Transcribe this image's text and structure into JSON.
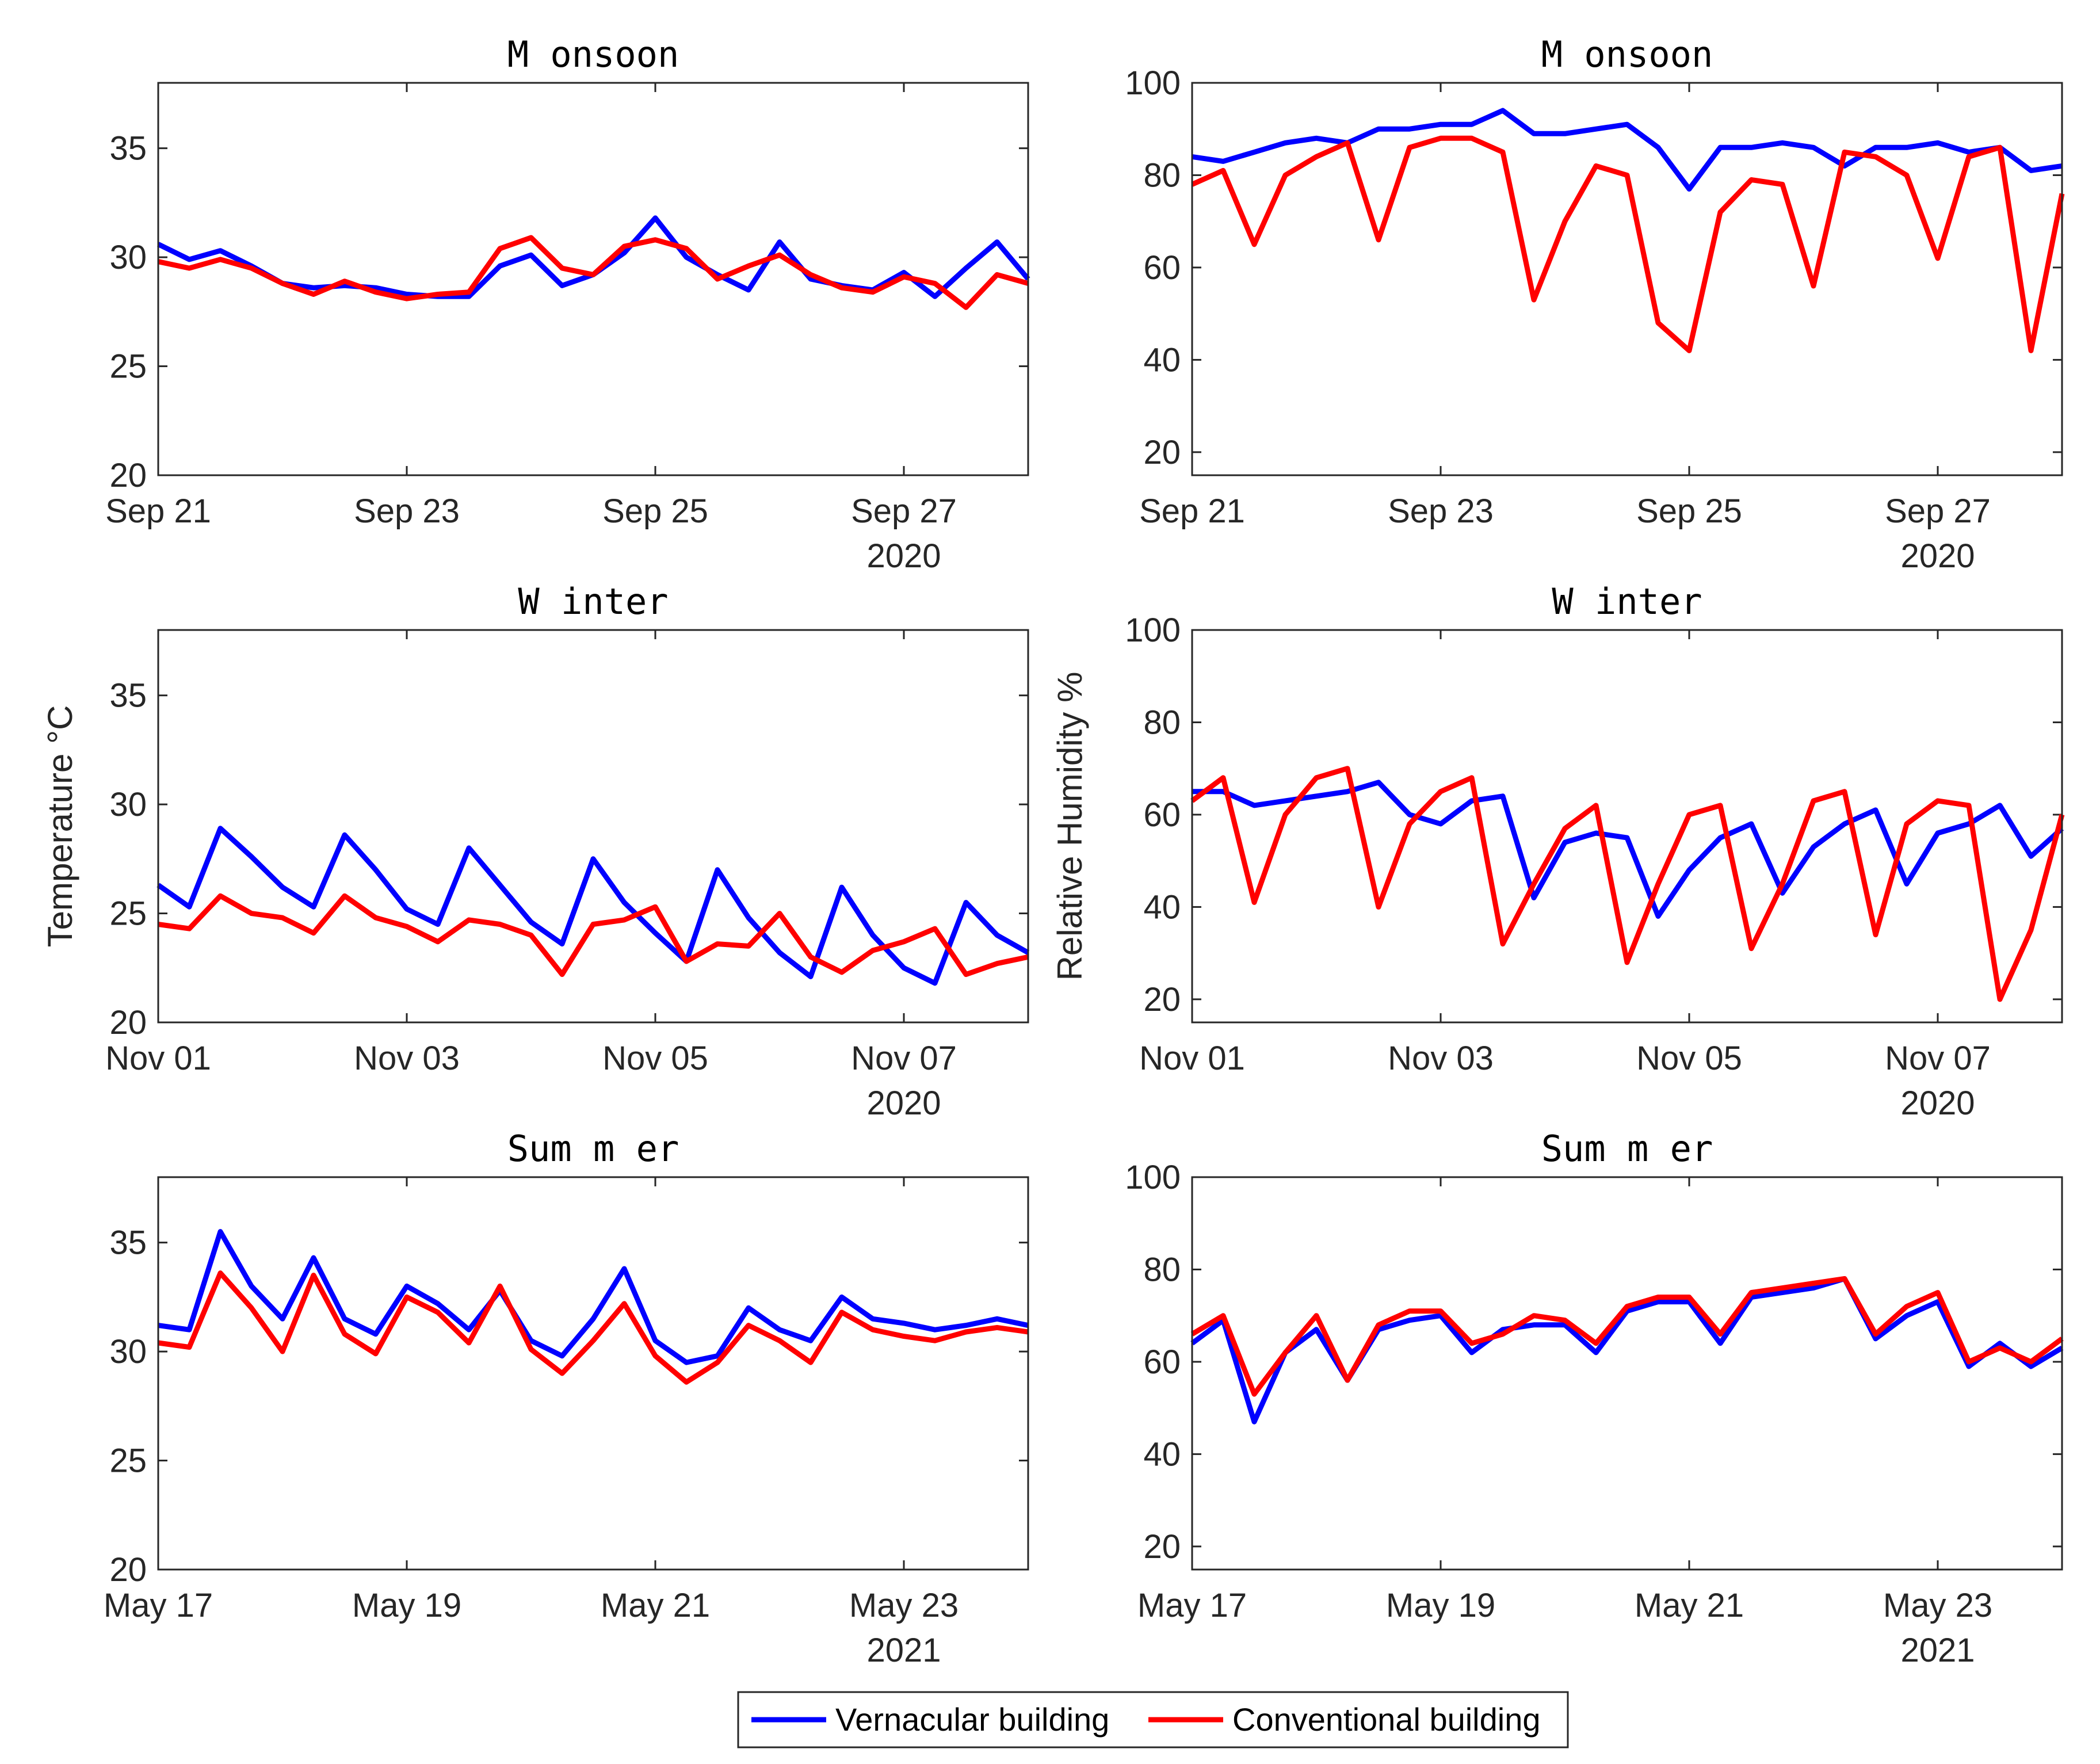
{
  "colors": {
    "vernacular": "#0000ff",
    "conventional": "#ff0000",
    "axis": "#262626"
  },
  "legend": {
    "items": [
      "Vernacular building",
      "Conventional building"
    ]
  },
  "chart_data": [
    {
      "type": "line",
      "title": "M onsoon",
      "ylabel": "",
      "ylim": [
        20,
        38
      ],
      "yticks": [
        20,
        25,
        30,
        35
      ],
      "xlim": [
        0,
        7
      ],
      "xtick_labels": [
        "Sep 21",
        "Sep 23",
        "Sep 25",
        "Sep 27"
      ],
      "year_label": "2020",
      "x": [
        0,
        0.25,
        0.5,
        0.75,
        1,
        1.25,
        1.5,
        1.75,
        2,
        2.25,
        2.5,
        2.75,
        3,
        3.25,
        3.5,
        3.75,
        4,
        4.25,
        4.5,
        4.75,
        5,
        5.25,
        5.5,
        5.75,
        6,
        6.25,
        6.5,
        6.75,
        7
      ],
      "series": [
        {
          "name": "Vernacular building",
          "values": [
            30.6,
            29.9,
            30.3,
            29.6,
            28.8,
            28.6,
            28.7,
            28.6,
            28.3,
            28.2,
            28.2,
            29.6,
            30.1,
            28.7,
            29.2,
            30.2,
            31.8,
            30.0,
            29.2,
            28.5,
            30.7,
            29.0,
            28.7,
            28.5,
            29.3,
            28.2,
            29.5,
            30.7,
            29.0
          ]
        },
        {
          "name": "Conventional building",
          "values": [
            29.8,
            29.5,
            29.9,
            29.5,
            28.8,
            28.3,
            28.9,
            28.4,
            28.1,
            28.3,
            28.4,
            30.4,
            30.9,
            29.5,
            29.2,
            30.5,
            30.8,
            30.4,
            29.0,
            29.6,
            30.1,
            29.2,
            28.6,
            28.4,
            29.1,
            28.8,
            27.7,
            29.2,
            28.8
          ]
        }
      ]
    },
    {
      "type": "line",
      "title": "M onsoon",
      "ylabel": "",
      "ylim": [
        15,
        100
      ],
      "yticks": [
        20,
        40,
        60,
        80,
        100
      ],
      "xlim": [
        0,
        7
      ],
      "xtick_labels": [
        "Sep 21",
        "Sep 23",
        "Sep 25",
        "Sep 27"
      ],
      "year_label": "2020",
      "x": [
        0,
        0.25,
        0.5,
        0.75,
        1,
        1.25,
        1.5,
        1.75,
        2,
        2.25,
        2.5,
        2.75,
        3,
        3.25,
        3.5,
        3.75,
        4,
        4.25,
        4.5,
        4.75,
        5,
        5.25,
        5.5,
        5.75,
        6,
        6.25,
        6.5,
        6.75,
        7
      ],
      "series": [
        {
          "name": "Vernacular building",
          "values": [
            84,
            83,
            85,
            87,
            88,
            87,
            90,
            90,
            91,
            91,
            94,
            89,
            89,
            90,
            91,
            86,
            77,
            86,
            86,
            87,
            86,
            82,
            86,
            86,
            87,
            85,
            86,
            81,
            82
          ]
        },
        {
          "name": "Conventional building",
          "values": [
            78,
            81,
            65,
            80,
            84,
            87,
            66,
            86,
            88,
            88,
            85,
            53,
            70,
            82,
            80,
            48,
            42,
            72,
            79,
            78,
            56,
            85,
            84,
            80,
            62,
            84,
            86,
            42,
            76
          ]
        }
      ]
    },
    {
      "type": "line",
      "title": "W inter",
      "ylabel": "Temperature °C",
      "ylim": [
        20,
        38
      ],
      "yticks": [
        20,
        25,
        30,
        35
      ],
      "xlim": [
        0,
        7
      ],
      "xtick_labels": [
        "Nov 01",
        "Nov 03",
        "Nov 05",
        "Nov 07"
      ],
      "year_label": "2020",
      "x": [
        0,
        0.25,
        0.5,
        0.75,
        1,
        1.25,
        1.5,
        1.75,
        2,
        2.25,
        2.5,
        2.75,
        3,
        3.25,
        3.5,
        3.75,
        4,
        4.25,
        4.5,
        4.75,
        5,
        5.25,
        5.5,
        5.75,
        6,
        6.25,
        6.5,
        6.75,
        7
      ],
      "series": [
        {
          "name": "Vernacular building",
          "values": [
            26.3,
            25.3,
            28.9,
            27.6,
            26.2,
            25.3,
            28.6,
            27.0,
            25.2,
            24.5,
            28.0,
            26.3,
            24.6,
            23.6,
            27.5,
            25.5,
            24.1,
            22.8,
            27.0,
            24.8,
            23.2,
            22.1,
            26.2,
            24.0,
            22.5,
            21.8,
            25.5,
            24.0,
            23.2
          ]
        },
        {
          "name": "Conventional building",
          "values": [
            24.5,
            24.3,
            25.8,
            25.0,
            24.8,
            24.1,
            25.8,
            24.8,
            24.4,
            23.7,
            24.7,
            24.5,
            24.0,
            22.2,
            24.5,
            24.7,
            25.3,
            22.8,
            23.6,
            23.5,
            25.0,
            23.0,
            22.3,
            23.3,
            23.7,
            24.3,
            22.2,
            22.7,
            23.0
          ]
        }
      ]
    },
    {
      "type": "line",
      "title": "W inter",
      "ylabel": "Relative Humidity %",
      "ylim": [
        15,
        100
      ],
      "yticks": [
        20,
        40,
        60,
        80,
        100
      ],
      "xlim": [
        0,
        7
      ],
      "xtick_labels": [
        "Nov 01",
        "Nov 03",
        "Nov 05",
        "Nov 07"
      ],
      "year_label": "2020",
      "x": [
        0,
        0.25,
        0.5,
        0.75,
        1,
        1.25,
        1.5,
        1.75,
        2,
        2.25,
        2.5,
        2.75,
        3,
        3.25,
        3.5,
        3.75,
        4,
        4.25,
        4.5,
        4.75,
        5,
        5.25,
        5.5,
        5.75,
        6,
        6.25,
        6.5,
        6.75,
        7
      ],
      "series": [
        {
          "name": "Vernacular building",
          "values": [
            65,
            65,
            62,
            63,
            64,
            65,
            67,
            60,
            58,
            63,
            64,
            42,
            54,
            56,
            55,
            38,
            48,
            55,
            58,
            43,
            53,
            58,
            61,
            45,
            56,
            58,
            62,
            51,
            57
          ]
        },
        {
          "name": "Conventional building",
          "values": [
            63,
            68,
            41,
            60,
            68,
            70,
            40,
            58,
            65,
            68,
            32,
            45,
            57,
            62,
            28,
            45,
            60,
            62,
            31,
            45,
            63,
            65,
            34,
            58,
            63,
            62,
            20,
            35,
            60
          ]
        }
      ]
    },
    {
      "type": "line",
      "title": "Sum m er",
      "ylabel": "",
      "ylim": [
        20,
        38
      ],
      "yticks": [
        20,
        25,
        30,
        35
      ],
      "xlim": [
        0,
        7
      ],
      "xtick_labels": [
        "May 17",
        "May 19",
        "May 21",
        "May 23"
      ],
      "year_label": "2021",
      "x": [
        0,
        0.25,
        0.5,
        0.75,
        1,
        1.25,
        1.5,
        1.75,
        2,
        2.25,
        2.5,
        2.75,
        3,
        3.25,
        3.5,
        3.75,
        4,
        4.25,
        4.5,
        4.75,
        5,
        5.25,
        5.5,
        5.75,
        6,
        6.25,
        6.5,
        6.75,
        7
      ],
      "series": [
        {
          "name": "Vernacular building",
          "values": [
            31.2,
            31.0,
            35.5,
            33.0,
            31.5,
            34.3,
            31.5,
            30.8,
            33.0,
            32.2,
            31.0,
            32.8,
            30.5,
            29.8,
            31.5,
            33.8,
            30.5,
            29.5,
            29.8,
            32.0,
            31.0,
            30.5,
            32.5,
            31.5,
            31.3,
            31.0,
            31.2,
            31.5,
            31.2
          ]
        },
        {
          "name": "Conventional building",
          "values": [
            30.4,
            30.2,
            33.6,
            32.0,
            30.0,
            33.5,
            30.8,
            29.9,
            32.5,
            31.8,
            30.4,
            33.0,
            30.1,
            29.0,
            30.5,
            32.2,
            29.8,
            28.6,
            29.5,
            31.2,
            30.5,
            29.5,
            31.8,
            31.0,
            30.7,
            30.5,
            30.9,
            31.1,
            30.9
          ]
        }
      ]
    },
    {
      "type": "line",
      "title": "Sum m er",
      "ylabel": "",
      "ylim": [
        15,
        100
      ],
      "yticks": [
        20,
        40,
        60,
        80,
        100
      ],
      "xlim": [
        0,
        7
      ],
      "xtick_labels": [
        "May 17",
        "May 19",
        "May 21",
        "May 23"
      ],
      "year_label": "2021",
      "x": [
        0,
        0.25,
        0.5,
        0.75,
        1,
        1.25,
        1.5,
        1.75,
        2,
        2.25,
        2.5,
        2.75,
        3,
        3.25,
        3.5,
        3.75,
        4,
        4.25,
        4.5,
        4.75,
        5,
        5.25,
        5.5,
        5.75,
        6,
        6.25,
        6.5,
        6.75,
        7
      ],
      "series": [
        {
          "name": "Vernacular building",
          "values": [
            64,
            69,
            47,
            62,
            67,
            56,
            67,
            69,
            70,
            62,
            67,
            68,
            68,
            62,
            71,
            73,
            73,
            64,
            74,
            75,
            76,
            78,
            65,
            70,
            73,
            59,
            64,
            59,
            63
          ]
        },
        {
          "name": "Conventional building",
          "values": [
            66,
            70,
            53,
            62,
            70,
            56,
            68,
            71,
            71,
            64,
            66,
            70,
            69,
            64,
            72,
            74,
            74,
            66,
            75,
            76,
            77,
            78,
            66,
            72,
            75,
            60,
            63,
            60,
            65
          ]
        }
      ]
    }
  ]
}
